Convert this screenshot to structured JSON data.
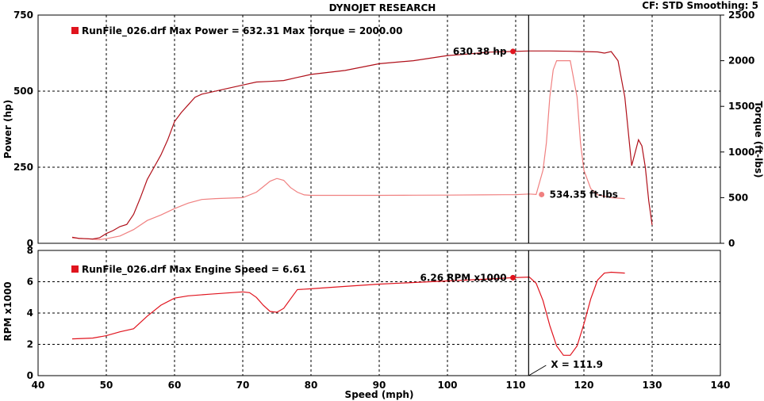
{
  "header": {
    "title": "DYNOJET RESEARCH",
    "cf_label": "CF: STD  Smoothing: 5"
  },
  "chart_data": [
    {
      "type": "line",
      "panel": "top",
      "legend_text": "RunFile_026.drf Max Power = 632.31     Max Torque = 2000.00",
      "legend_color": "#e0141e",
      "xlabel": "Speed (mph)",
      "xlim": [
        40,
        140
      ],
      "ylabel": "Power (hp)",
      "ylim": [
        0,
        750
      ],
      "yticks": [
        0,
        250,
        500,
        750
      ],
      "y2label": "Torque (ft-lbs)",
      "y2lim": [
        0,
        2500
      ],
      "y2ticks": [
        0,
        500,
        1000,
        1500,
        2000,
        2500
      ],
      "grid": true,
      "series": [
        {
          "name": "Power",
          "axis": "left",
          "color": "#b0101a",
          "x": [
            45,
            46,
            47,
            48,
            49,
            50,
            51,
            52,
            53,
            54,
            55,
            56,
            57,
            58,
            59,
            60,
            61,
            62,
            63,
            64,
            65,
            67,
            70,
            72,
            74,
            76,
            78,
            80,
            85,
            90,
            95,
            100,
            103,
            106,
            109.6,
            112,
            115,
            118,
            120,
            122,
            123,
            124,
            125,
            126,
            127,
            128,
            128.5,
            129,
            129.5,
            130
          ],
          "values": [
            20,
            16,
            15,
            14,
            18,
            32,
            42,
            55,
            62,
            95,
            150,
            210,
            250,
            290,
            340,
            400,
            430,
            455,
            480,
            490,
            495,
            505,
            520,
            530,
            532,
            535,
            545,
            555,
            568,
            590,
            600,
            617,
            622,
            628,
            630.38,
            632,
            632,
            631,
            630,
            629,
            625,
            630,
            600,
            480,
            255,
            340,
            320,
            250,
            140,
            60
          ]
        },
        {
          "name": "Torque",
          "axis": "right",
          "color": "#f08080",
          "x": [
            45,
            47,
            49,
            50,
            52,
            54,
            56,
            58,
            60,
            62,
            64,
            66,
            68,
            70,
            72,
            73,
            74,
            75,
            76,
            77,
            78,
            79,
            80,
            85,
            90,
            95,
            100,
            105,
            110,
            112,
            113,
            114,
            114.5,
            115,
            115.5,
            116,
            117,
            118,
            119,
            119.5,
            120,
            121,
            122,
            124,
            126
          ],
          "values": [
            60,
            50,
            40,
            50,
            80,
            150,
            250,
            310,
            380,
            440,
            480,
            490,
            495,
            500,
            560,
            620,
            680,
            710,
            690,
            610,
            560,
            530,
            525,
            525,
            525,
            527,
            528,
            530,
            533,
            540,
            534.35,
            800,
            1100,
            1600,
            1900,
            2000,
            2000,
            2000,
            1600,
            1100,
            800,
            600,
            530,
            500,
            490
          ]
        }
      ],
      "annotations": [
        {
          "text": "630.38 hp",
          "series": "Power",
          "x": 109.6,
          "y": 630.38
        },
        {
          "text": "534.35 ft-lbs",
          "series": "Torque",
          "x": 113.8,
          "y": 534.35
        }
      ]
    },
    {
      "type": "line",
      "panel": "bottom",
      "legend_text": "RunFile_026.drf Max Engine Speed = 6.61",
      "legend_color": "#e0141e",
      "xlabel": "Speed (mph)",
      "xlim": [
        40,
        140
      ],
      "xticks": [
        40,
        50,
        60,
        70,
        80,
        90,
        100,
        110,
        120,
        130,
        140
      ],
      "ylabel": "RPM x1000",
      "ylim": [
        0,
        8
      ],
      "yticks": [
        0,
        2,
        4,
        6,
        8
      ],
      "grid": true,
      "series": [
        {
          "name": "Engine Speed",
          "axis": "left",
          "color": "#e0141e",
          "x": [
            45,
            48,
            50,
            52,
            54,
            56,
            58,
            60,
            62,
            65,
            70,
            71,
            72,
            73,
            74,
            75,
            76,
            77,
            78,
            80,
            85,
            90,
            95,
            100,
            105,
            109.6,
            112,
            113,
            114,
            115,
            116,
            117,
            118,
            119,
            120,
            121,
            122,
            123,
            124,
            126
          ],
          "values": [
            2.35,
            2.4,
            2.55,
            2.8,
            3.0,
            3.8,
            4.5,
            4.95,
            5.1,
            5.2,
            5.35,
            5.3,
            5.0,
            4.5,
            4.1,
            4.05,
            4.3,
            4.9,
            5.5,
            5.55,
            5.7,
            5.85,
            5.95,
            6.05,
            6.15,
            6.26,
            6.3,
            5.9,
            4.8,
            3.2,
            1.9,
            1.3,
            1.3,
            1.9,
            3.3,
            4.9,
            6.1,
            6.55,
            6.61,
            6.55
          ]
        }
      ],
      "annotations": [
        {
          "text": "6.26 RPM x1000",
          "series": "Engine Speed",
          "x": 109.6,
          "y": 6.26
        }
      ],
      "cursor": {
        "x": 111.9,
        "label": "X = 111.9"
      }
    }
  ]
}
